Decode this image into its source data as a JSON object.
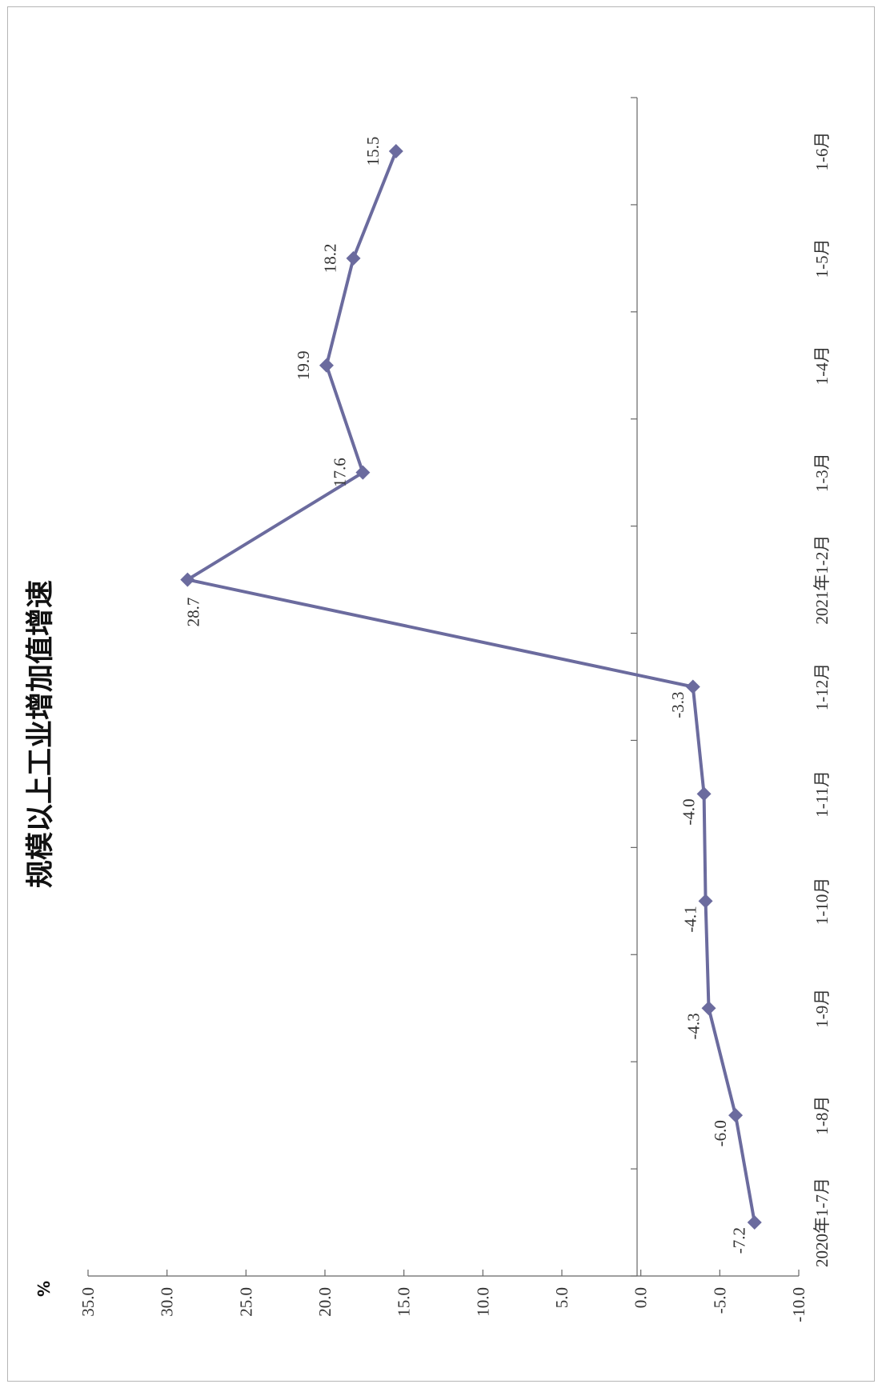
{
  "chart_data": {
    "type": "line",
    "title": "规模以上工业增加值增速",
    "ylabel": "%",
    "xlabel": "",
    "ylim": [
      -10,
      35
    ],
    "yticks": [
      "35.0",
      "30.0",
      "25.0",
      "20.0",
      "15.0",
      "10.0",
      "5.0",
      "0.0",
      "-5.0",
      "-10.0"
    ],
    "ytick_values": [
      35,
      30,
      25,
      20,
      15,
      10,
      5,
      0,
      -5,
      -10
    ],
    "categories": [
      "2020年1-7月",
      "1-8月",
      "1-9月",
      "1-10月",
      "1-11月",
      "1-12月",
      "2021年1-2月",
      "1-3月",
      "1-4月",
      "1-5月",
      "1-6月"
    ],
    "series": [
      {
        "values": [
          -7.2,
          -6.0,
          -4.3,
          -4.1,
          -4.0,
          -3.3,
          28.7,
          17.6,
          19.9,
          18.2,
          15.5
        ],
        "labels": [
          "-7.2",
          "-6.0",
          "-4.3",
          "-4.1",
          "-4.0",
          "-3.3",
          "28.7",
          "17.6",
          "19.9",
          "18.2",
          "15.5"
        ],
        "color": "#6b6b9e"
      }
    ],
    "orientation": "rotated-90-ccw",
    "grid": false
  }
}
